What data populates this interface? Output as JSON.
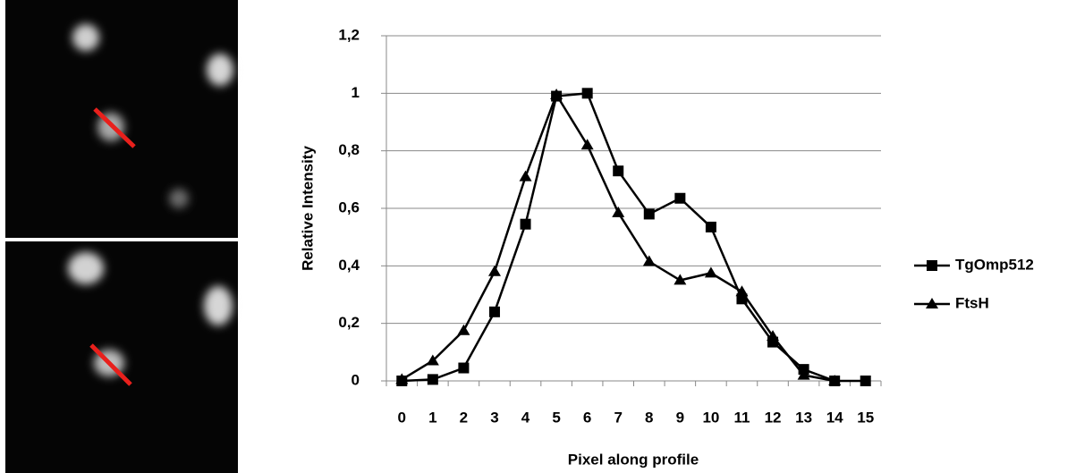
{
  "chart_data": {
    "type": "line",
    "x": [
      0,
      1,
      2,
      3,
      4,
      5,
      6,
      7,
      8,
      9,
      10,
      11,
      12,
      13,
      14,
      15
    ],
    "xlabel": "Pixel along profile",
    "ylabel": "Relative Intensity",
    "ylim": [
      0,
      1.2
    ],
    "yticks": [
      0,
      {
        "value": 0.2,
        "label": "0,2"
      },
      {
        "value": 0.4,
        "label": "0,4"
      },
      {
        "value": 0.6,
        "label": "0,6"
      },
      {
        "value": 0.8,
        "label": "0,8"
      },
      1,
      {
        "value": 1.2,
        "label": "1,2"
      }
    ],
    "grid": true,
    "legend": "right",
    "series": [
      {
        "name": "TgOmp512",
        "color": "#000000",
        "marker": "square",
        "values": [
          0,
          0.005,
          0.045,
          0.24,
          0.545,
          0.99,
          1.0,
          0.73,
          0.58,
          0.635,
          0.535,
          0.285,
          0.135,
          0.04,
          0,
          0
        ]
      },
      {
        "name": "FtsH",
        "color": "#000000",
        "marker": "triangle",
        "values": [
          0.005,
          0.07,
          0.175,
          0.38,
          0.71,
          0.995,
          0.82,
          0.585,
          0.415,
          0.35,
          0.375,
          0.31,
          0.155,
          0.02,
          0,
          null
        ]
      }
    ]
  }
}
